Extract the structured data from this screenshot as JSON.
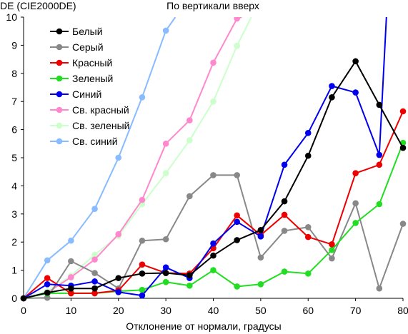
{
  "chart_data": {
    "type": "line",
    "title": "По вертикали вверх",
    "ylabel": "DE (CIE2000DE)",
    "xlabel": "Отклонение от нормали, градусы",
    "xlim": [
      0,
      80
    ],
    "ylim": [
      0,
      10
    ],
    "xticks": [
      "0",
      "10",
      "20",
      "30",
      "40",
      "50",
      "60",
      "70",
      "80"
    ],
    "yticks": [
      "0",
      "1",
      "2",
      "3",
      "4",
      "5",
      "6",
      "7",
      "8",
      "9",
      "10"
    ],
    "grid": false,
    "legend_position": "top-left",
    "series": [
      {
        "name": "Белый",
        "color": "#000000",
        "x": [
          0,
          5,
          10,
          15,
          20,
          25,
          30,
          35,
          40,
          45,
          50,
          55,
          60,
          65,
          70,
          75,
          80
        ],
        "y": [
          0.0,
          0.2,
          0.35,
          0.35,
          0.72,
          0.88,
          0.9,
          0.82,
          1.52,
          2.07,
          2.43,
          3.45,
          5.07,
          7.15,
          8.43,
          6.88,
          5.35
        ]
      },
      {
        "name": "Серый",
        "color": "#888888",
        "x": [
          0,
          5,
          10,
          15,
          20,
          25,
          30,
          35,
          40,
          45,
          50,
          55,
          60,
          65,
          70,
          75,
          80
        ],
        "y": [
          0.0,
          0.02,
          1.32,
          0.9,
          0.35,
          2.05,
          2.1,
          3.63,
          4.38,
          4.38,
          1.45,
          2.4,
          2.53,
          1.42,
          3.38,
          0.35,
          2.65
        ]
      },
      {
        "name": "Красный",
        "color": "#ee0000",
        "x": [
          0,
          5,
          10,
          15,
          20,
          25,
          30,
          35,
          40,
          45,
          50,
          55,
          60,
          65,
          70,
          75,
          80
        ],
        "y": [
          0.0,
          0.72,
          0.18,
          0.18,
          0.28,
          1.2,
          0.9,
          0.88,
          1.78,
          2.95,
          2.25,
          2.97,
          2.18,
          1.92,
          4.45,
          4.75,
          6.65
        ]
      },
      {
        "name": "Зеленый",
        "color": "#22dd22",
        "x": [
          0,
          5,
          10,
          15,
          20,
          25,
          30,
          35,
          40,
          45,
          50,
          55,
          60,
          65,
          70,
          75,
          80
        ],
        "y": [
          0.0,
          0.18,
          0.18,
          0.18,
          0.25,
          0.3,
          0.58,
          0.45,
          1.0,
          0.42,
          0.5,
          0.95,
          0.88,
          1.72,
          2.68,
          3.35,
          5.53
        ]
      },
      {
        "name": "Синий",
        "color": "#0000ee",
        "x": [
          0,
          5,
          10,
          15,
          20,
          25,
          30,
          35,
          40,
          45,
          50,
          55,
          60,
          65,
          70,
          75,
          76.5
        ],
        "y": [
          0.0,
          0.5,
          0.45,
          0.6,
          0.22,
          0.1,
          1.1,
          0.72,
          1.95,
          2.72,
          2.2,
          4.75,
          5.88,
          7.55,
          7.32,
          5.1,
          10.0
        ]
      },
      {
        "name": "Св. красный",
        "color": "#ff88cc",
        "x": [
          0,
          5,
          10,
          15,
          20,
          25,
          30,
          35,
          40,
          45,
          46
        ],
        "y": [
          0.0,
          0.2,
          0.75,
          1.38,
          2.28,
          3.5,
          5.5,
          6.33,
          8.38,
          9.95,
          10.0
        ]
      },
      {
        "name": "Св. зеленый",
        "color": "#ccffcc",
        "x": [
          0,
          5,
          10,
          15,
          20,
          25,
          30,
          35,
          40,
          45,
          48
        ],
        "y": [
          0.0,
          0.25,
          0.8,
          1.55,
          2.22,
          3.35,
          4.45,
          5.62,
          7.0,
          8.98,
          10.0
        ]
      },
      {
        "name": "Св. синий",
        "color": "#88bbff",
        "x": [
          0,
          5,
          10,
          15,
          20,
          25,
          30,
          32
        ],
        "y": [
          0.0,
          1.35,
          2.05,
          3.18,
          5.0,
          7.15,
          9.52,
          10.0
        ]
      }
    ]
  }
}
